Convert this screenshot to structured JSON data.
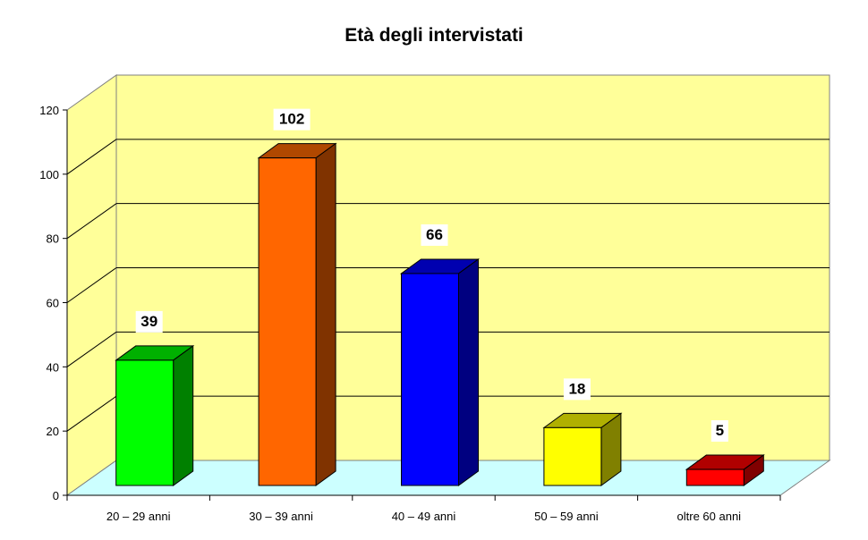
{
  "chart_data": {
    "type": "bar",
    "title": "Età degli intervistati",
    "xlabel": "",
    "ylabel": "",
    "categories": [
      "20 – 29 anni",
      "30 – 39 anni",
      "40 – 49 anni",
      "50 – 59 anni",
      "oltre 60 anni"
    ],
    "values": [
      39,
      102,
      66,
      18,
      5
    ],
    "colors": [
      "#00ff00",
      "#ff6600",
      "#0000ff",
      "#ffff00",
      "#ff0000"
    ],
    "side_colors": [
      "#008000",
      "#803300",
      "#000080",
      "#808000",
      "#800000"
    ],
    "top_colors": [
      "#00b000",
      "#b04800",
      "#0000b0",
      "#b0b000",
      "#b00000"
    ],
    "ylim": [
      0,
      120
    ],
    "yticks": [
      0,
      20,
      40,
      60,
      80,
      100,
      120
    ],
    "grid": true,
    "legend": "none",
    "style": "3d-column",
    "wall_color": "#ffff99",
    "floor_color": "#ccffff"
  }
}
